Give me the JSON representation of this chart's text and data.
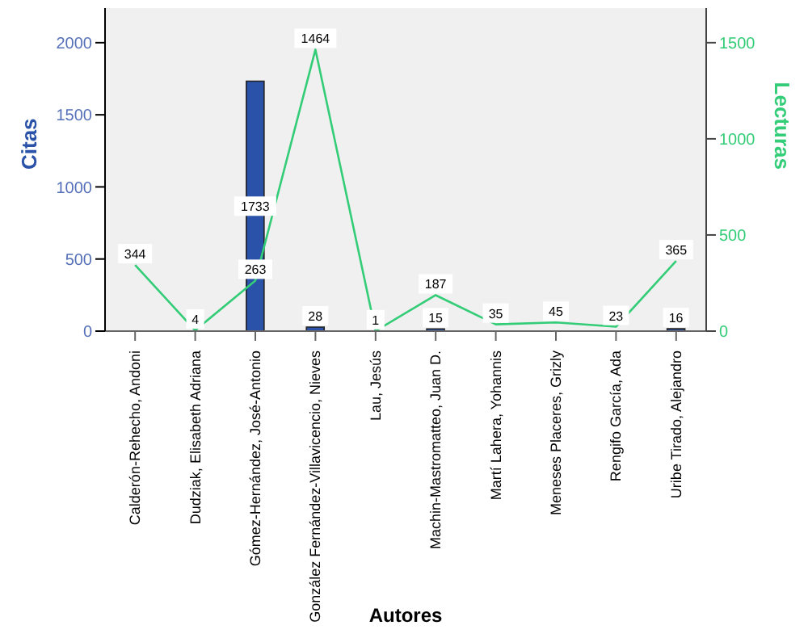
{
  "chart_data": {
    "type": "bar",
    "xlabel": "Autores",
    "ylabel": "Citas",
    "y2label": "Lecturas",
    "categories": [
      "Calderón-Rehecho, Andoni",
      "Dudziak, Elisabeth Adriana",
      "Gómez-Hernández, José-Antonio",
      "González Fernández-Villavicencio, Nieves",
      "Lau, Jesús",
      "Machin-Mastromatteo, Juan D.",
      "Martí Lahera, Yohannis",
      "Meneses Placeres, Grizly",
      "Rengifo García, Ada",
      "Uribe Tirado, Alejandro"
    ],
    "series": [
      {
        "name": null,
        "color": "#2a52a8",
        "values": [
          0,
          0,
          1733,
          28,
          0,
          15,
          0,
          0,
          0,
          16
        ],
        "value_labels": [
          null,
          null,
          "1733",
          "28",
          null,
          "15",
          null,
          null,
          null,
          "16"
        ]
      },
      {
        "name": null,
        "type": "line",
        "axis": "y2",
        "color": "#33cc77",
        "values": [
          344,
          4,
          263,
          1464,
          1,
          187,
          35,
          45,
          23,
          365
        ],
        "value_labels": [
          "344",
          "4",
          "263",
          "1464",
          "1",
          "187",
          "35",
          "45",
          "23",
          "365"
        ]
      }
    ],
    "ylim": [
      0,
      2240
    ],
    "yticks": [
      0,
      500,
      1000,
      1500,
      2000
    ],
    "y2lim": [
      0,
      1680
    ],
    "y2ticks": [
      0,
      500,
      1000,
      1500
    ],
    "grid": false,
    "legend": false,
    "marker": "none"
  }
}
